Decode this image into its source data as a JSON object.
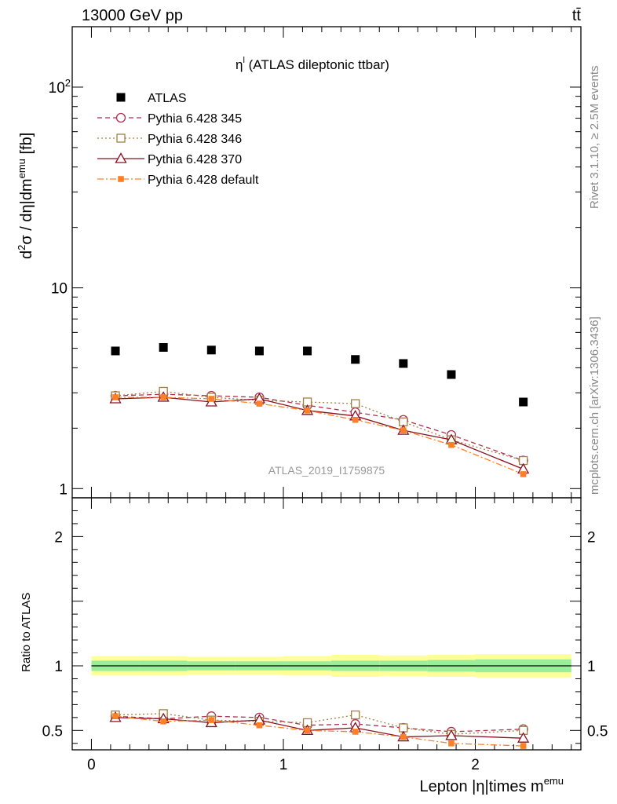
{
  "header": {
    "energy_label": "13000 GeV pp",
    "process_label": "tt̄"
  },
  "side_text": {
    "rivet": "Rivet 3.1.10, ≥ 2.5M events",
    "mcplots": "mcplots.cern.ch [arXiv:1306.3436]"
  },
  "analysis_label": "ATLAS_2019_I1759875",
  "chart_data": [
    {
      "type": "scatter",
      "title": "η",
      "title_sup": "l",
      "title_rest": " (ATLAS dileptonic ttbar)",
      "ylabel": {
        "d": "d",
        "two": "2",
        "sigma": "σ / dη|dm",
        "emu": "emu",
        "unit": " [fb]"
      },
      "yscale": "log",
      "ylim": [
        0.9,
        200
      ],
      "xlim": [
        -0.1,
        2.55
      ],
      "y_ticks": [
        {
          "v": 1,
          "label": "1"
        },
        {
          "v": 10,
          "label": "10"
        },
        {
          "v": 100,
          "label": "10",
          "sup": "2"
        }
      ],
      "legend_position": "top-left",
      "x": [
        0.125,
        0.375,
        0.625,
        0.875,
        1.125,
        1.375,
        1.625,
        1.875,
        2.25
      ],
      "series": [
        {
          "name": "ATLAS",
          "color": "#000000",
          "marker": "square-filled",
          "line": "none",
          "values": [
            4.85,
            5.05,
            4.9,
            4.85,
            4.85,
            4.4,
            4.2,
            3.7,
            2.7
          ]
        },
        {
          "name": "Pythia 6.428 345",
          "color": "#b03050",
          "marker": "circle-open",
          "line": "dashed",
          "values": [
            2.9,
            2.95,
            2.9,
            2.85,
            2.6,
            2.4,
            2.2,
            1.85,
            1.38
          ]
        },
        {
          "name": "Pythia 6.428 346",
          "color": "#a08040",
          "marker": "square-open",
          "line": "dotted",
          "values": [
            2.9,
            3.05,
            2.85,
            2.75,
            2.7,
            2.65,
            2.15,
            1.75,
            1.38
          ]
        },
        {
          "name": "Pythia 6.428 370",
          "color": "#8b1020",
          "marker": "triangle-open",
          "line": "solid",
          "values": [
            2.8,
            2.85,
            2.7,
            2.8,
            2.45,
            2.3,
            1.95,
            1.75,
            1.25
          ]
        },
        {
          "name": "Pythia 6.428 default",
          "color": "#ff7f27",
          "marker": "square-small",
          "line": "dashdot",
          "values": [
            2.85,
            2.85,
            2.8,
            2.65,
            2.45,
            2.2,
            1.95,
            1.65,
            1.18
          ]
        }
      ]
    },
    {
      "type": "scatter",
      "ylabel": "Ratio to ATLAS",
      "xlabel": "Lepton |η|times m",
      "xlabel_sup": "emu",
      "ylim": [
        0.35,
        2.3
      ],
      "xlim": [
        -0.1,
        2.55
      ],
      "y_ticks": [
        {
          "v": 0.5,
          "label": "0.5"
        },
        {
          "v": 1,
          "label": "1"
        },
        {
          "v": 2,
          "label": "2"
        }
      ],
      "x_ticks": [
        {
          "v": 0,
          "label": "0"
        },
        {
          "v": 1,
          "label": "1"
        },
        {
          "v": 2,
          "label": "2"
        }
      ],
      "band_edges": [
        0,
        0.25,
        0.5,
        0.75,
        1.0,
        1.25,
        1.5,
        1.75,
        2.0,
        2.5
      ],
      "band_inner": [
        0.04,
        0.04,
        0.035,
        0.035,
        0.035,
        0.04,
        0.04,
        0.045,
        0.05
      ],
      "band_outer": [
        0.075,
        0.075,
        0.07,
        0.07,
        0.075,
        0.085,
        0.08,
        0.085,
        0.09
      ],
      "x": [
        0.125,
        0.375,
        0.625,
        0.875,
        1.125,
        1.375,
        1.625,
        1.875,
        2.25
      ],
      "series": [
        {
          "name": "Pythia 6.428 345",
          "values": [
            0.61,
            0.59,
            0.61,
            0.6,
            0.54,
            0.55,
            0.52,
            0.49,
            0.51
          ]
        },
        {
          "name": "Pythia 6.428 346",
          "values": [
            0.62,
            0.63,
            0.58,
            0.57,
            0.56,
            0.62,
            0.52,
            0.47,
            0.5
          ]
        },
        {
          "name": "Pythia 6.428 370",
          "values": [
            0.6,
            0.59,
            0.56,
            0.58,
            0.5,
            0.52,
            0.45,
            0.46,
            0.44
          ]
        },
        {
          "name": "Pythia 6.428 default",
          "values": [
            0.61,
            0.57,
            0.58,
            0.54,
            0.5,
            0.49,
            0.45,
            0.4,
            0.38
          ]
        }
      ]
    }
  ]
}
